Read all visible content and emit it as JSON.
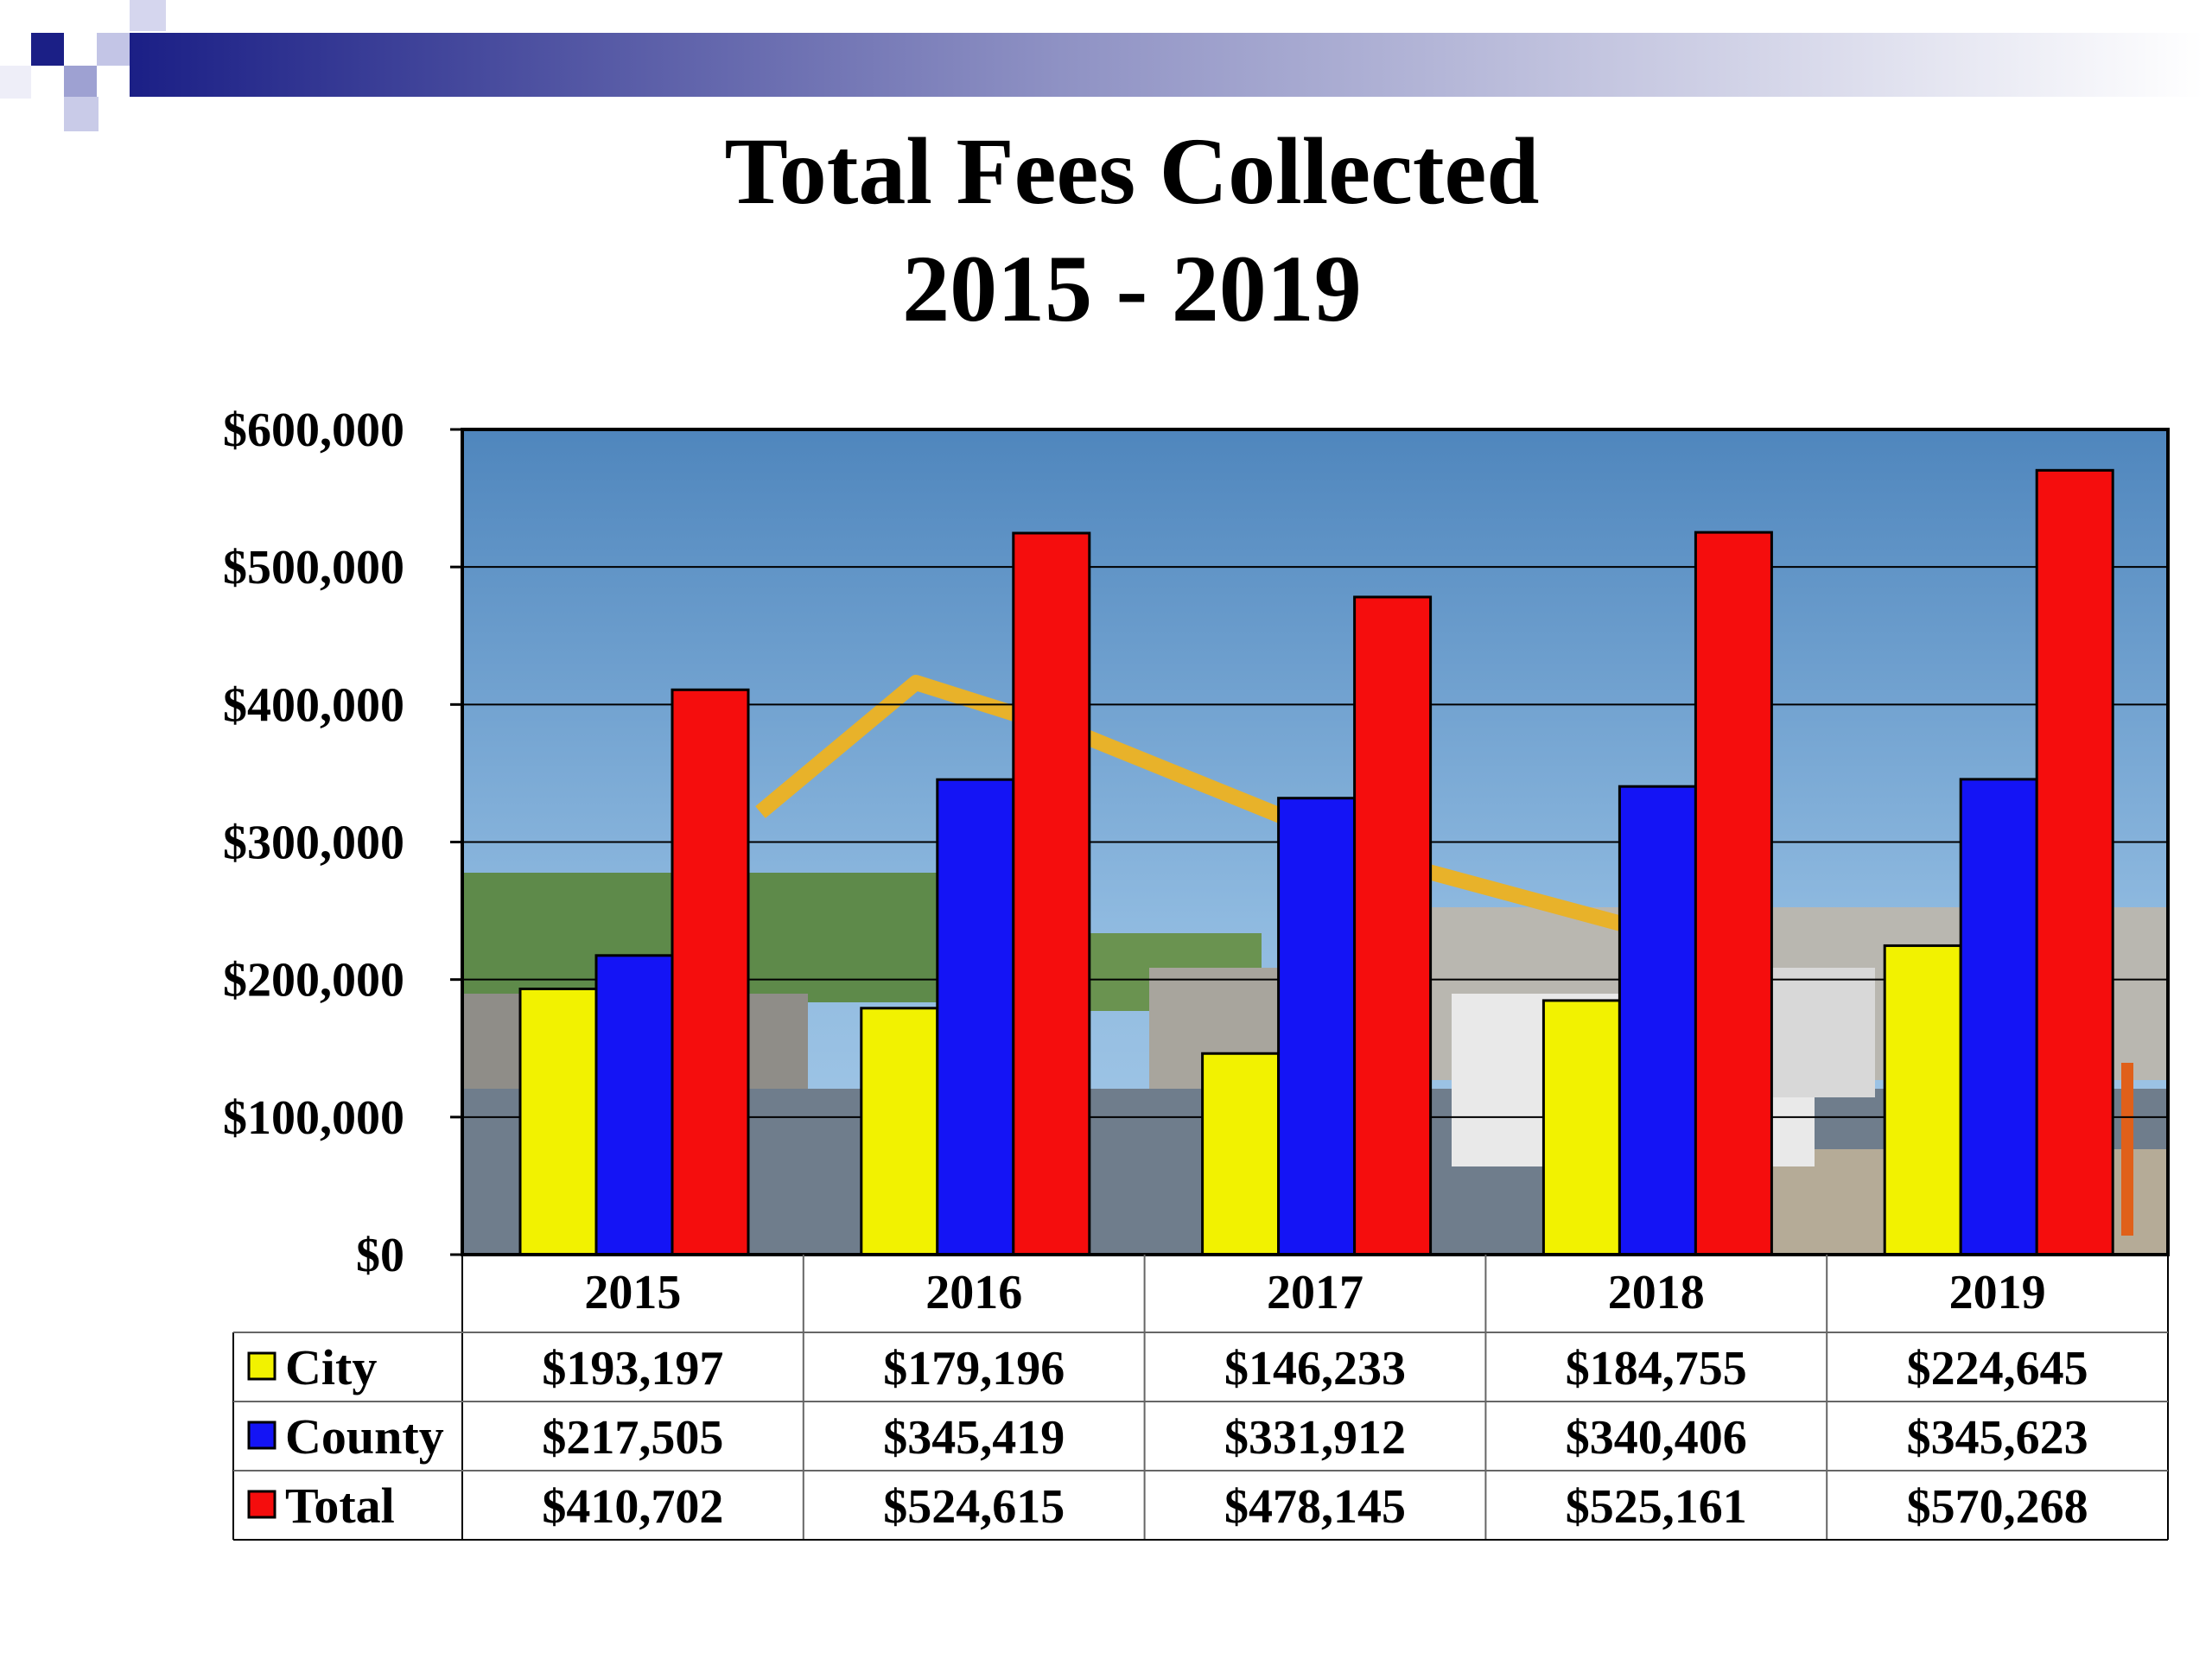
{
  "slide": {
    "title_line1": "Total Fees Collected",
    "title_line2": "2015 - 2019"
  },
  "colors": {
    "city": "#f2f200",
    "county": "#1414f5",
    "total": "#f50d0d",
    "accent": "#1b1f86"
  },
  "chart_data": {
    "type": "bar",
    "title": "Total Fees Collected 2015 - 2019",
    "categories": [
      "2015",
      "2016",
      "2017",
      "2018",
      "2019"
    ],
    "series": [
      {
        "name": "City",
        "color": "#f2f200",
        "values": [
          193197,
          179196,
          146233,
          184755,
          224645
        ],
        "labels": [
          "$193,197",
          "$179,196",
          "$146,233",
          "$184,755",
          "$224,645"
        ]
      },
      {
        "name": "County",
        "color": "#1414f5",
        "values": [
          217505,
          345419,
          331912,
          340406,
          345623
        ],
        "labels": [
          "$217,505",
          "$345,419",
          "$331,912",
          "$340,406",
          "$345,623"
        ]
      },
      {
        "name": "Total",
        "color": "#f50d0d",
        "values": [
          410702,
          524615,
          478145,
          525161,
          570268
        ],
        "labels": [
          "$410,702",
          "$524,615",
          "$478,145",
          "$525,161",
          "$570,268"
        ]
      }
    ],
    "ylim": [
      0,
      600000
    ],
    "yticks": [
      0,
      100000,
      200000,
      300000,
      400000,
      500000,
      600000
    ],
    "ytick_labels": [
      "$0",
      "$100,000",
      "$200,000",
      "$300,000",
      "$400,000",
      "$500,000",
      "$600,000"
    ],
    "grid": true,
    "legend": "data-table-below",
    "background": "construction-site-photo"
  }
}
